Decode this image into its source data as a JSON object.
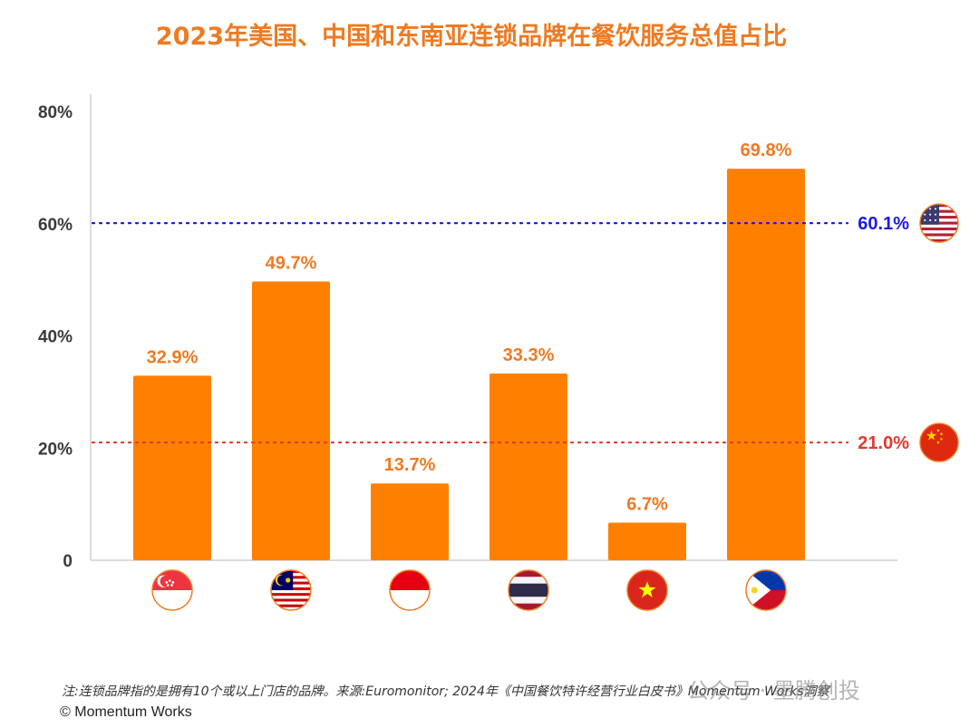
{
  "chart_data": {
    "type": "bar",
    "title": "2023年美国、中国和东南亚连锁品牌在餐饮服务总值占比",
    "categories": [
      "新加坡",
      "马来西亚",
      "印度尼西亚",
      "泰国",
      "越南",
      "菲律宾"
    ],
    "values": [
      32.9,
      49.7,
      13.7,
      33.3,
      6.7,
      69.8
    ],
    "data_labels": [
      "32.9%",
      "49.7%",
      "13.7%",
      "33.3%",
      "6.7%",
      "69.8%"
    ],
    "category_flags": [
      "singapore-flag",
      "malaysia-flag",
      "indonesia-flag",
      "thailand-flag",
      "vietnam-flag",
      "philippines-flag"
    ],
    "ylim": [
      0,
      80
    ],
    "yticks": [
      0,
      20,
      40,
      60,
      80
    ],
    "ytick_labels": [
      "0",
      "20%",
      "40%",
      "60%",
      "80%"
    ],
    "reference_lines": [
      {
        "value": 60.1,
        "label": "60.1%",
        "color": "#1a1ae6",
        "flag": "usa-flag"
      },
      {
        "value": 21.0,
        "label": "21.0%",
        "color": "#e03a2f",
        "flag": "china-flag"
      }
    ],
    "bar_color": "#ff8000",
    "label_color": "#ee7a22",
    "grid": false,
    "legend": "none"
  },
  "footer": {
    "note": "注:连锁品牌指的是拥有10个或以上门店的品牌。来源:Euromonitor; 2024年《中国餐饮特许经营行业白皮书》Momentum Works洞察",
    "copyright": "© Momentum Works"
  },
  "watermark": "公众号 · 墨腾创投"
}
